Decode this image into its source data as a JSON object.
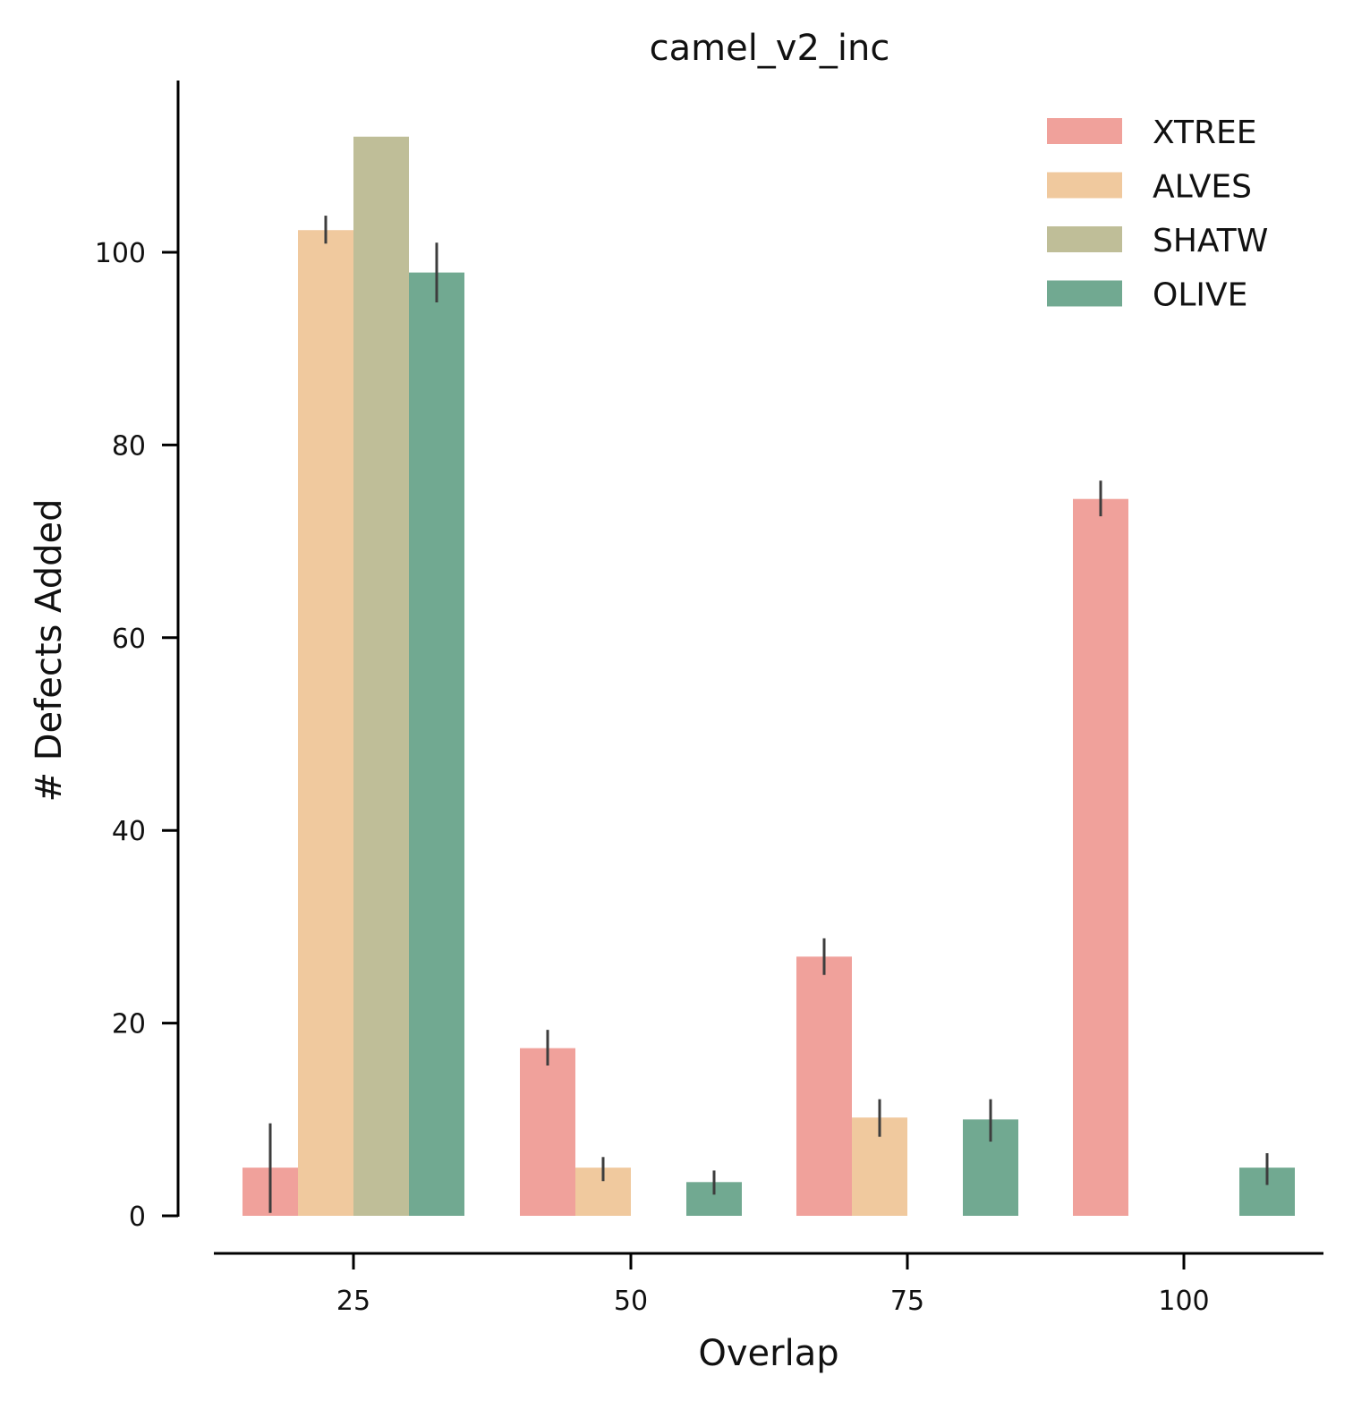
{
  "chart_data": {
    "type": "bar",
    "title": "camel_v2_inc",
    "xlabel": "Overlap",
    "ylabel": "# Defects Added",
    "categories": [
      "25",
      "50",
      "75",
      "100"
    ],
    "ylim": [
      0,
      118
    ],
    "yticks": [
      0,
      20,
      40,
      60,
      80,
      100
    ],
    "grid": false,
    "legend_position": "top-right",
    "error_bars": true,
    "series": [
      {
        "name": "XTREE",
        "color": "#f0a19b",
        "values": [
          5,
          17.4,
          26.9,
          74.4
        ],
        "err_low": [
          0.3,
          15.6,
          25.0,
          72.6
        ],
        "err_high": [
          9.6,
          19.3,
          28.8,
          76.3
        ]
      },
      {
        "name": "ALVES",
        "color": "#f0c99e",
        "values": [
          102.3,
          5.0,
          10.2,
          0
        ],
        "err_low": [
          100.9,
          3.6,
          8.2,
          null
        ],
        "err_high": [
          103.8,
          6.1,
          12.1,
          null
        ]
      },
      {
        "name": "SHATW",
        "color": "#bfbe98",
        "values": [
          112,
          0,
          0,
          0
        ],
        "err_low": [
          null,
          null,
          null,
          null
        ],
        "err_high": [
          null,
          null,
          null,
          null
        ]
      },
      {
        "name": "OLIVE",
        "color": "#71a991",
        "values": [
          97.9,
          3.5,
          10.0,
          5.0
        ],
        "err_low": [
          94.8,
          2.2,
          7.7,
          3.2
        ],
        "err_high": [
          101.0,
          4.7,
          12.1,
          6.5
        ]
      }
    ]
  }
}
